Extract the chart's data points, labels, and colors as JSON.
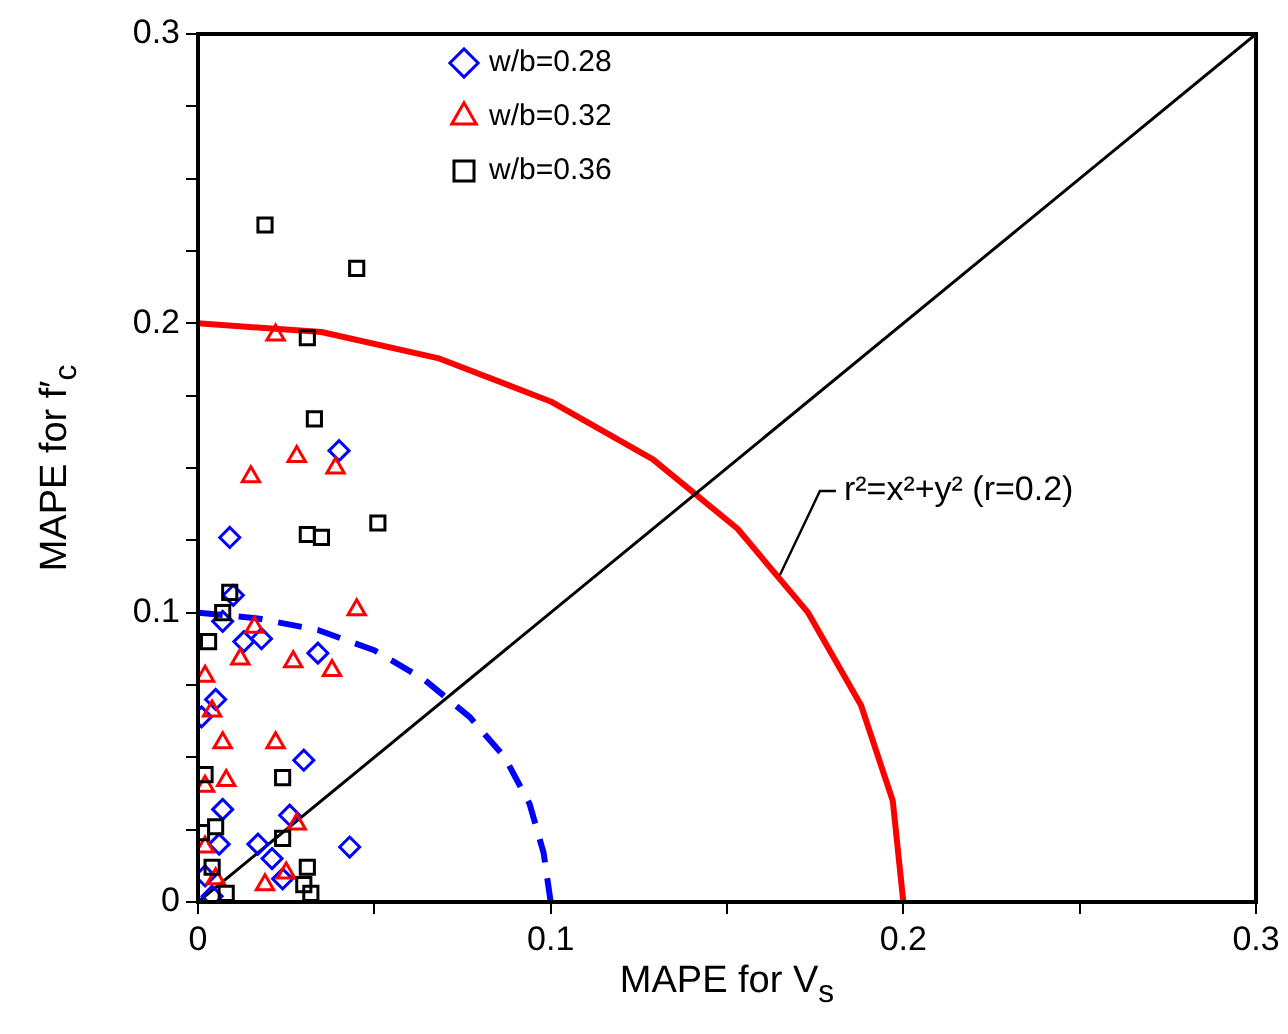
{
  "chart_data": {
    "type": "scatter",
    "xlabel": "MAPE for V$_{s}$",
    "ylabel": "MAPE for f′$_{c}$",
    "xlim": [
      0,
      0.3
    ],
    "ylim": [
      0,
      0.3
    ],
    "xticks": [
      0,
      {
        "value": 0.05,
        "label": null
      },
      0.1,
      {
        "value": 0.15,
        "label": null
      },
      0.2,
      {
        "value": 0.25,
        "label": null
      },
      0.3
    ],
    "yticks": [
      0,
      {
        "value": 0.025,
        "label": null
      },
      {
        "value": 0.05,
        "label": null
      },
      {
        "value": 0.075,
        "label": null
      },
      0.1,
      {
        "value": 0.125,
        "label": null
      },
      {
        "value": 0.15,
        "label": null
      },
      {
        "value": 0.175,
        "label": null
      },
      0.2,
      {
        "value": 0.225,
        "label": null
      },
      {
        "value": 0.25,
        "label": null
      },
      {
        "value": 0.275,
        "label": null
      },
      0.3
    ],
    "grid": false,
    "legend": "top",
    "annotations": [
      {
        "text": "r²=x²+y² (r=0.2)",
        "x": 0.165,
        "y": 0.113
      }
    ],
    "series": [
      {
        "name": "w/b=0.28",
        "color": "#0000ff",
        "marker": "diamond",
        "x": [
          0.04,
          0.034,
          0.03,
          0.026,
          0.043,
          0.009,
          0.01,
          0.007,
          0.013,
          0.018,
          0.005,
          0.001,
          0.007,
          0.006,
          0.017,
          0.021,
          0.024,
          0.002,
          0.004
        ],
        "values": [
          0.156,
          0.086,
          0.049,
          0.03,
          0.019,
          0.126,
          0.106,
          0.097,
          0.09,
          0.091,
          0.07,
          0.064,
          0.032,
          0.02,
          0.02,
          0.015,
          0.008,
          0.009,
          0.002
        ]
      },
      {
        "name": "w/b=0.32",
        "color": "#ff0000",
        "marker": "triangle",
        "x": [
          0.022,
          0.028,
          0.015,
          0.039,
          0.045,
          0.016,
          0.012,
          0.027,
          0.038,
          0.002,
          0.004,
          0.007,
          0.022,
          0.002,
          0.008,
          0.028,
          0.002,
          0.005,
          0.019,
          0.025
        ],
        "values": [
          0.196,
          0.154,
          0.147,
          0.15,
          0.101,
          0.095,
          0.084,
          0.083,
          0.08,
          0.078,
          0.066,
          0.055,
          0.055,
          0.04,
          0.042,
          0.027,
          0.019,
          0.008,
          0.006,
          0.01
        ]
      },
      {
        "name": "w/b=0.36",
        "color": "#000000",
        "marker": "square",
        "x": [
          0.019,
          0.045,
          0.031,
          0.033,
          0.051,
          0.031,
          0.035,
          0.009,
          0.007,
          0.003,
          0.002,
          0.024,
          0.005,
          0.001,
          0.024,
          0.004,
          0.031,
          0.03,
          0.032,
          0.008
        ],
        "values": [
          0.234,
          0.219,
          0.195,
          0.167,
          0.131,
          0.127,
          0.126,
          0.107,
          0.1,
          0.09,
          0.044,
          0.043,
          0.026,
          0.024,
          0.022,
          0.012,
          0.012,
          0.006,
          0.003,
          0.003
        ]
      },
      {
        "type": "line",
        "color": "#000000",
        "marker": "none",
        "line_style": "solid",
        "x": [
          0,
          0.3
        ],
        "values": [
          0,
          0.3
        ]
      },
      {
        "type": "line",
        "color": "#ff0000",
        "marker": "none",
        "line_style": "solid",
        "x": [
          0.2,
          0.197,
          0.188,
          0.173,
          0.153,
          0.129,
          0.1,
          0.068,
          0.035,
          0
        ],
        "values": [
          0,
          0.035,
          0.068,
          0.1,
          0.129,
          0.153,
          0.173,
          0.188,
          0.197,
          0.2
        ]
      },
      {
        "type": "line",
        "color": "#0000ff",
        "marker": "none",
        "line_style": "dashed",
        "x": [
          0.1,
          0.098,
          0.094,
          0.087,
          0.077,
          0.064,
          0.05,
          0.034,
          0.017,
          0
        ],
        "values": [
          0,
          0.017,
          0.034,
          0.05,
          0.064,
          0.077,
          0.087,
          0.094,
          0.098,
          0.1
        ]
      }
    ]
  }
}
